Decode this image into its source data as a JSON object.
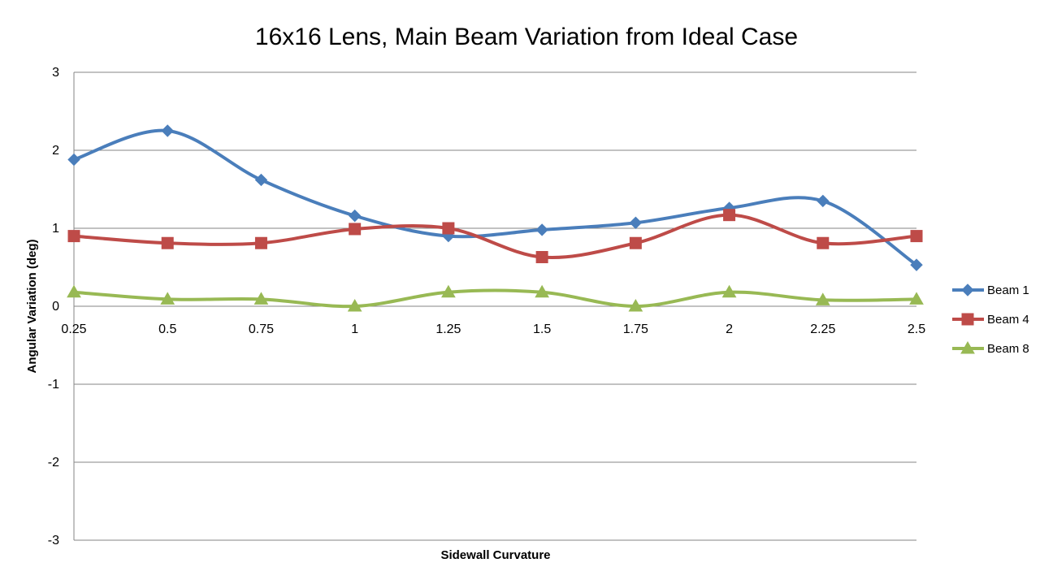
{
  "chart_data": {
    "type": "line",
    "title": "16x16 Lens, Main Beam Variation from Ideal Case",
    "xlabel": "Sidewall Curvature",
    "ylabel": "Angular Variation (deg)",
    "categories": [
      "0.25",
      "0.5",
      "0.75",
      "1",
      "1.25",
      "1.5",
      "1.75",
      "2",
      "2.25",
      "2.5"
    ],
    "ylim": [
      -3,
      3
    ],
    "yticks": [
      "3",
      "2",
      "1",
      "0",
      "-1",
      "-2",
      "-3"
    ],
    "grid": true,
    "smooth": true,
    "legend_position": "right",
    "series": [
      {
        "name": "Beam 1",
        "color": "#4a7ebb",
        "marker": "diamond",
        "values": [
          1.88,
          2.25,
          1.62,
          1.16,
          0.9,
          0.98,
          1.07,
          1.26,
          1.35,
          0.53
        ]
      },
      {
        "name": "Beam 4",
        "color": "#be4b48",
        "marker": "square",
        "values": [
          0.9,
          0.81,
          0.81,
          0.99,
          1.0,
          0.63,
          0.81,
          1.17,
          0.81,
          0.9
        ]
      },
      {
        "name": "Beam 8",
        "color": "#98b954",
        "marker": "triangle",
        "values": [
          0.18,
          0.09,
          0.09,
          0.0,
          0.18,
          0.18,
          0.0,
          0.18,
          0.08,
          0.09
        ]
      }
    ]
  }
}
